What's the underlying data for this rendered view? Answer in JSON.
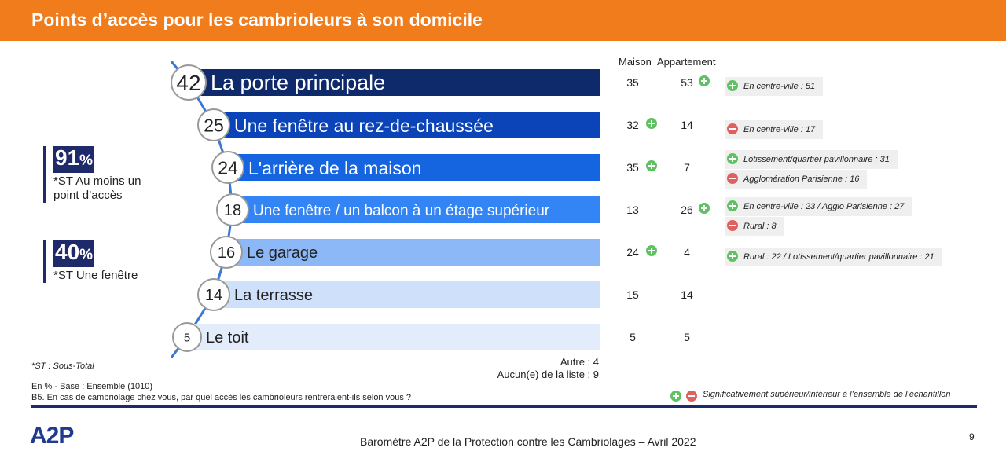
{
  "header": {
    "title": "Points d’accès pour les cambrioleurs à son domicile"
  },
  "columns": {
    "maison": "Maison",
    "appartement": "Appartement"
  },
  "subtotals": [
    {
      "value": "91",
      "unit": "%",
      "label_line1": "*ST Au moins un",
      "label_line2": "point d’accès"
    },
    {
      "value": "40",
      "unit": "%",
      "label_line1": "*ST Une fenêtre",
      "label_line2": ""
    }
  ],
  "footnotes": {
    "st": "*ST : Sous-Total",
    "autre": "Autre : 4",
    "aucun": "Aucun(e) de la liste : 9",
    "base": "En % - Base : Ensemble (1010)",
    "question": "B5. En cas de cambriolage chez vous, par quel accès les cambrioleurs rentreraient-ils selon vous ?",
    "legend": "Significativement supérieur/inférieur à l’ensemble de l’échantillon",
    "footer": "Baromètre A2P de la Protection contre les Cambriolages – Avril 2022",
    "page": "9",
    "logo": "A2P"
  },
  "colors": {
    "orange": "#f07c1b",
    "navy": "#1f2a6b",
    "plus": "#5ec262",
    "minus": "#e06060",
    "bars": [
      "#0e2a6b",
      "#0a44b8",
      "#1565e0",
      "#3385f5",
      "#8cb8f8",
      "#cfe0fb",
      "#e3ecfb"
    ]
  },
  "chart_data": {
    "type": "bar",
    "orientation": "horizontal",
    "unit": "%",
    "categories": [
      "La porte principale",
      "Une fenêtre au rez-de-chaussée",
      "L'arrière de la maison",
      "Une fenêtre / un balcon à un étage supérieur",
      "Le garage",
      "La terrasse",
      "Le toit"
    ],
    "values": [
      42,
      25,
      24,
      18,
      16,
      14,
      5
    ],
    "maison": [
      35,
      32,
      35,
      13,
      24,
      15,
      5
    ],
    "maison_sig": [
      "",
      "+",
      "+",
      "",
      "+",
      "",
      ""
    ],
    "appartement": [
      53,
      14,
      7,
      26,
      4,
      14,
      5
    ],
    "appartement_sig": [
      "+",
      "",
      "",
      "+",
      "",
      "",
      ""
    ],
    "notes": [
      [
        {
          "sign": "+",
          "text": "En centre-ville : 51"
        }
      ],
      [
        {
          "sign": "-",
          "text": "En centre-ville : 17"
        }
      ],
      [
        {
          "sign": "+",
          "text": "Lotissement/quartier pavillonnaire : 31"
        },
        {
          "sign": "-",
          "text": "Agglomération Parisienne : 16"
        }
      ],
      [
        {
          "sign": "+",
          "text": "En centre-ville : 23 / Agglo Parisienne : 27"
        },
        {
          "sign": "-",
          "text": "Rural : 8"
        }
      ],
      [
        {
          "sign": "+",
          "text": "Rural : 22 / Lotissement/quartier pavillonnaire : 21"
        }
      ],
      [],
      []
    ]
  }
}
